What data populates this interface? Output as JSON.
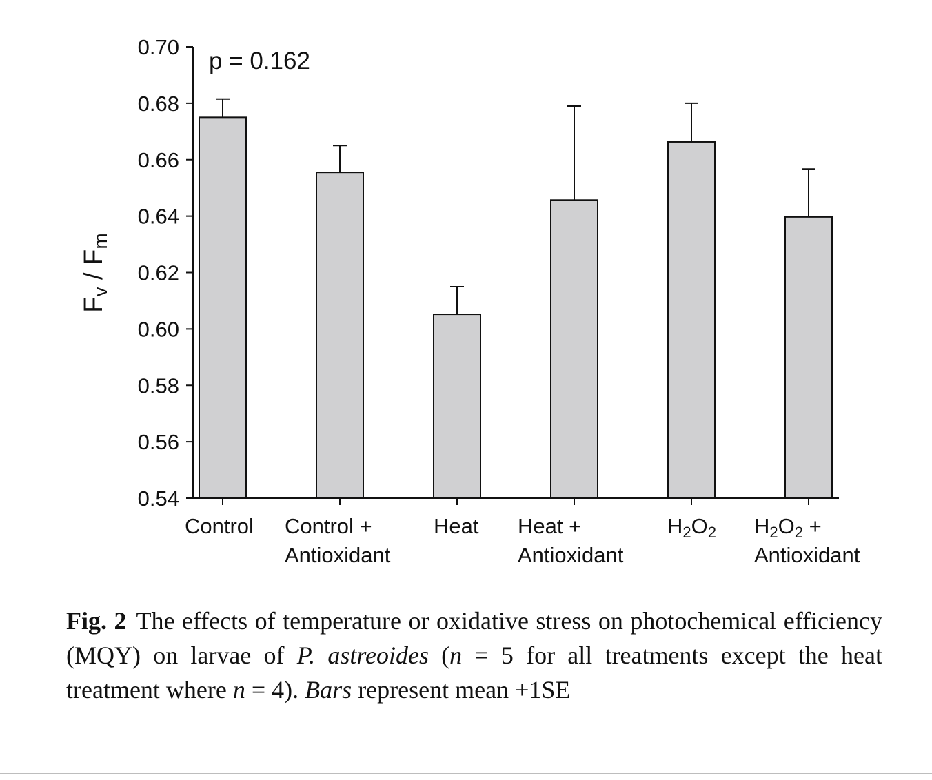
{
  "chart_data": {
    "type": "bar",
    "categories": [
      [
        "Control"
      ],
      [
        "Control +",
        "Antioxidant"
      ],
      [
        "Heat"
      ],
      [
        "Heat +",
        "Antioxidant"
      ],
      [
        "H2O2"
      ],
      [
        "H2O2 +",
        "Antioxidant"
      ]
    ],
    "values": [
      0.675,
      0.6555,
      0.6052,
      0.6457,
      0.6663,
      0.6397
    ],
    "error_upper": [
      0.0065,
      0.0095,
      0.0098,
      0.0333,
      0.0137,
      0.017
    ],
    "ylabel": "Fv / Fm",
    "ylim": [
      0.54,
      0.7
    ],
    "yticks": [
      "0.54",
      "0.56",
      "0.58",
      "0.60",
      "0.62",
      "0.64",
      "0.66",
      "0.68",
      "0.70"
    ],
    "annotation": "p = 0.162",
    "bar_color": "#d0d0d2",
    "edge_color": "#111111"
  },
  "caption": {
    "label": "Fig. 2",
    "text": "The effects of temperature or oxidative stress on photochemical efficiency (MQY) on larvae of P. astreoides (n = 5 for all treatments except the heat treatment where n = 4). Bars represent mean +1SE"
  }
}
